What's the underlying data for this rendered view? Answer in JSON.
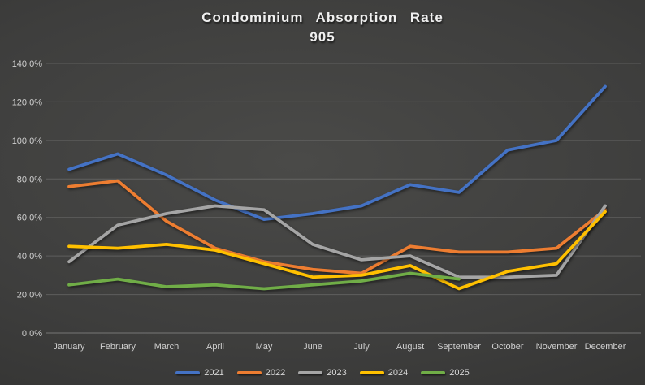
{
  "chart_data": {
    "type": "line",
    "title": "Condominium Absorption Rate",
    "subtitle": "905",
    "categories": [
      "January",
      "February",
      "March",
      "April",
      "May",
      "June",
      "July",
      "August",
      "September",
      "October",
      "November",
      "December"
    ],
    "series": [
      {
        "name": "2021",
        "color": "#4472C4",
        "values": [
          85,
          93,
          82,
          69,
          59,
          62,
          66,
          77,
          73,
          95,
          100,
          128
        ]
      },
      {
        "name": "2022",
        "color": "#ED7D31",
        "values": [
          76,
          79,
          58,
          44,
          37,
          33,
          31,
          45,
          42,
          42,
          44,
          64
        ]
      },
      {
        "name": "2023",
        "color": "#A5A5A5",
        "values": [
          37,
          56,
          62,
          66,
          64,
          46,
          38,
          40,
          29,
          29,
          30,
          66
        ]
      },
      {
        "name": "2024",
        "color": "#FFC000",
        "values": [
          45,
          44,
          46,
          43,
          36,
          29,
          30,
          35,
          23,
          32,
          36,
          63
        ]
      },
      {
        "name": "2025",
        "color": "#70AD47",
        "values": [
          25,
          28,
          24,
          25,
          23,
          25,
          27,
          31,
          28,
          null,
          null,
          null
        ]
      }
    ],
    "y_tick_values": [
      0,
      20,
      40,
      60,
      80,
      100,
      120,
      140
    ],
    "y_tick_labels": [
      "0.0%",
      "20.0%",
      "40.0%",
      "60.0%",
      "80.0%",
      "100.0%",
      "120.0%",
      "140.0%"
    ],
    "ylim": [
      0,
      140
    ],
    "grid": true,
    "legend_position": "bottom",
    "unit": "percent"
  },
  "style_colors": {
    "axis_text": "#cfcfcf",
    "gridline": "rgba(255,255,255,0.16)",
    "axis_line": "rgba(255,255,255,0.30)",
    "title_text": "#f0f0f0"
  }
}
